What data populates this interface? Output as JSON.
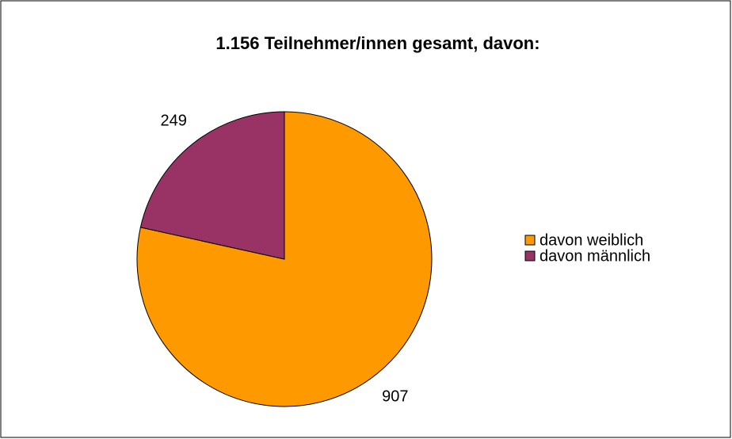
{
  "chart_data": {
    "type": "pie",
    "title": "1.156 Teilnehmer/innen gesamt, davon:",
    "categories": [
      "davon weiblich",
      "davon männlich"
    ],
    "values": [
      907,
      249
    ],
    "colors": [
      "#ff9900",
      "#993366"
    ],
    "legend": "right"
  }
}
